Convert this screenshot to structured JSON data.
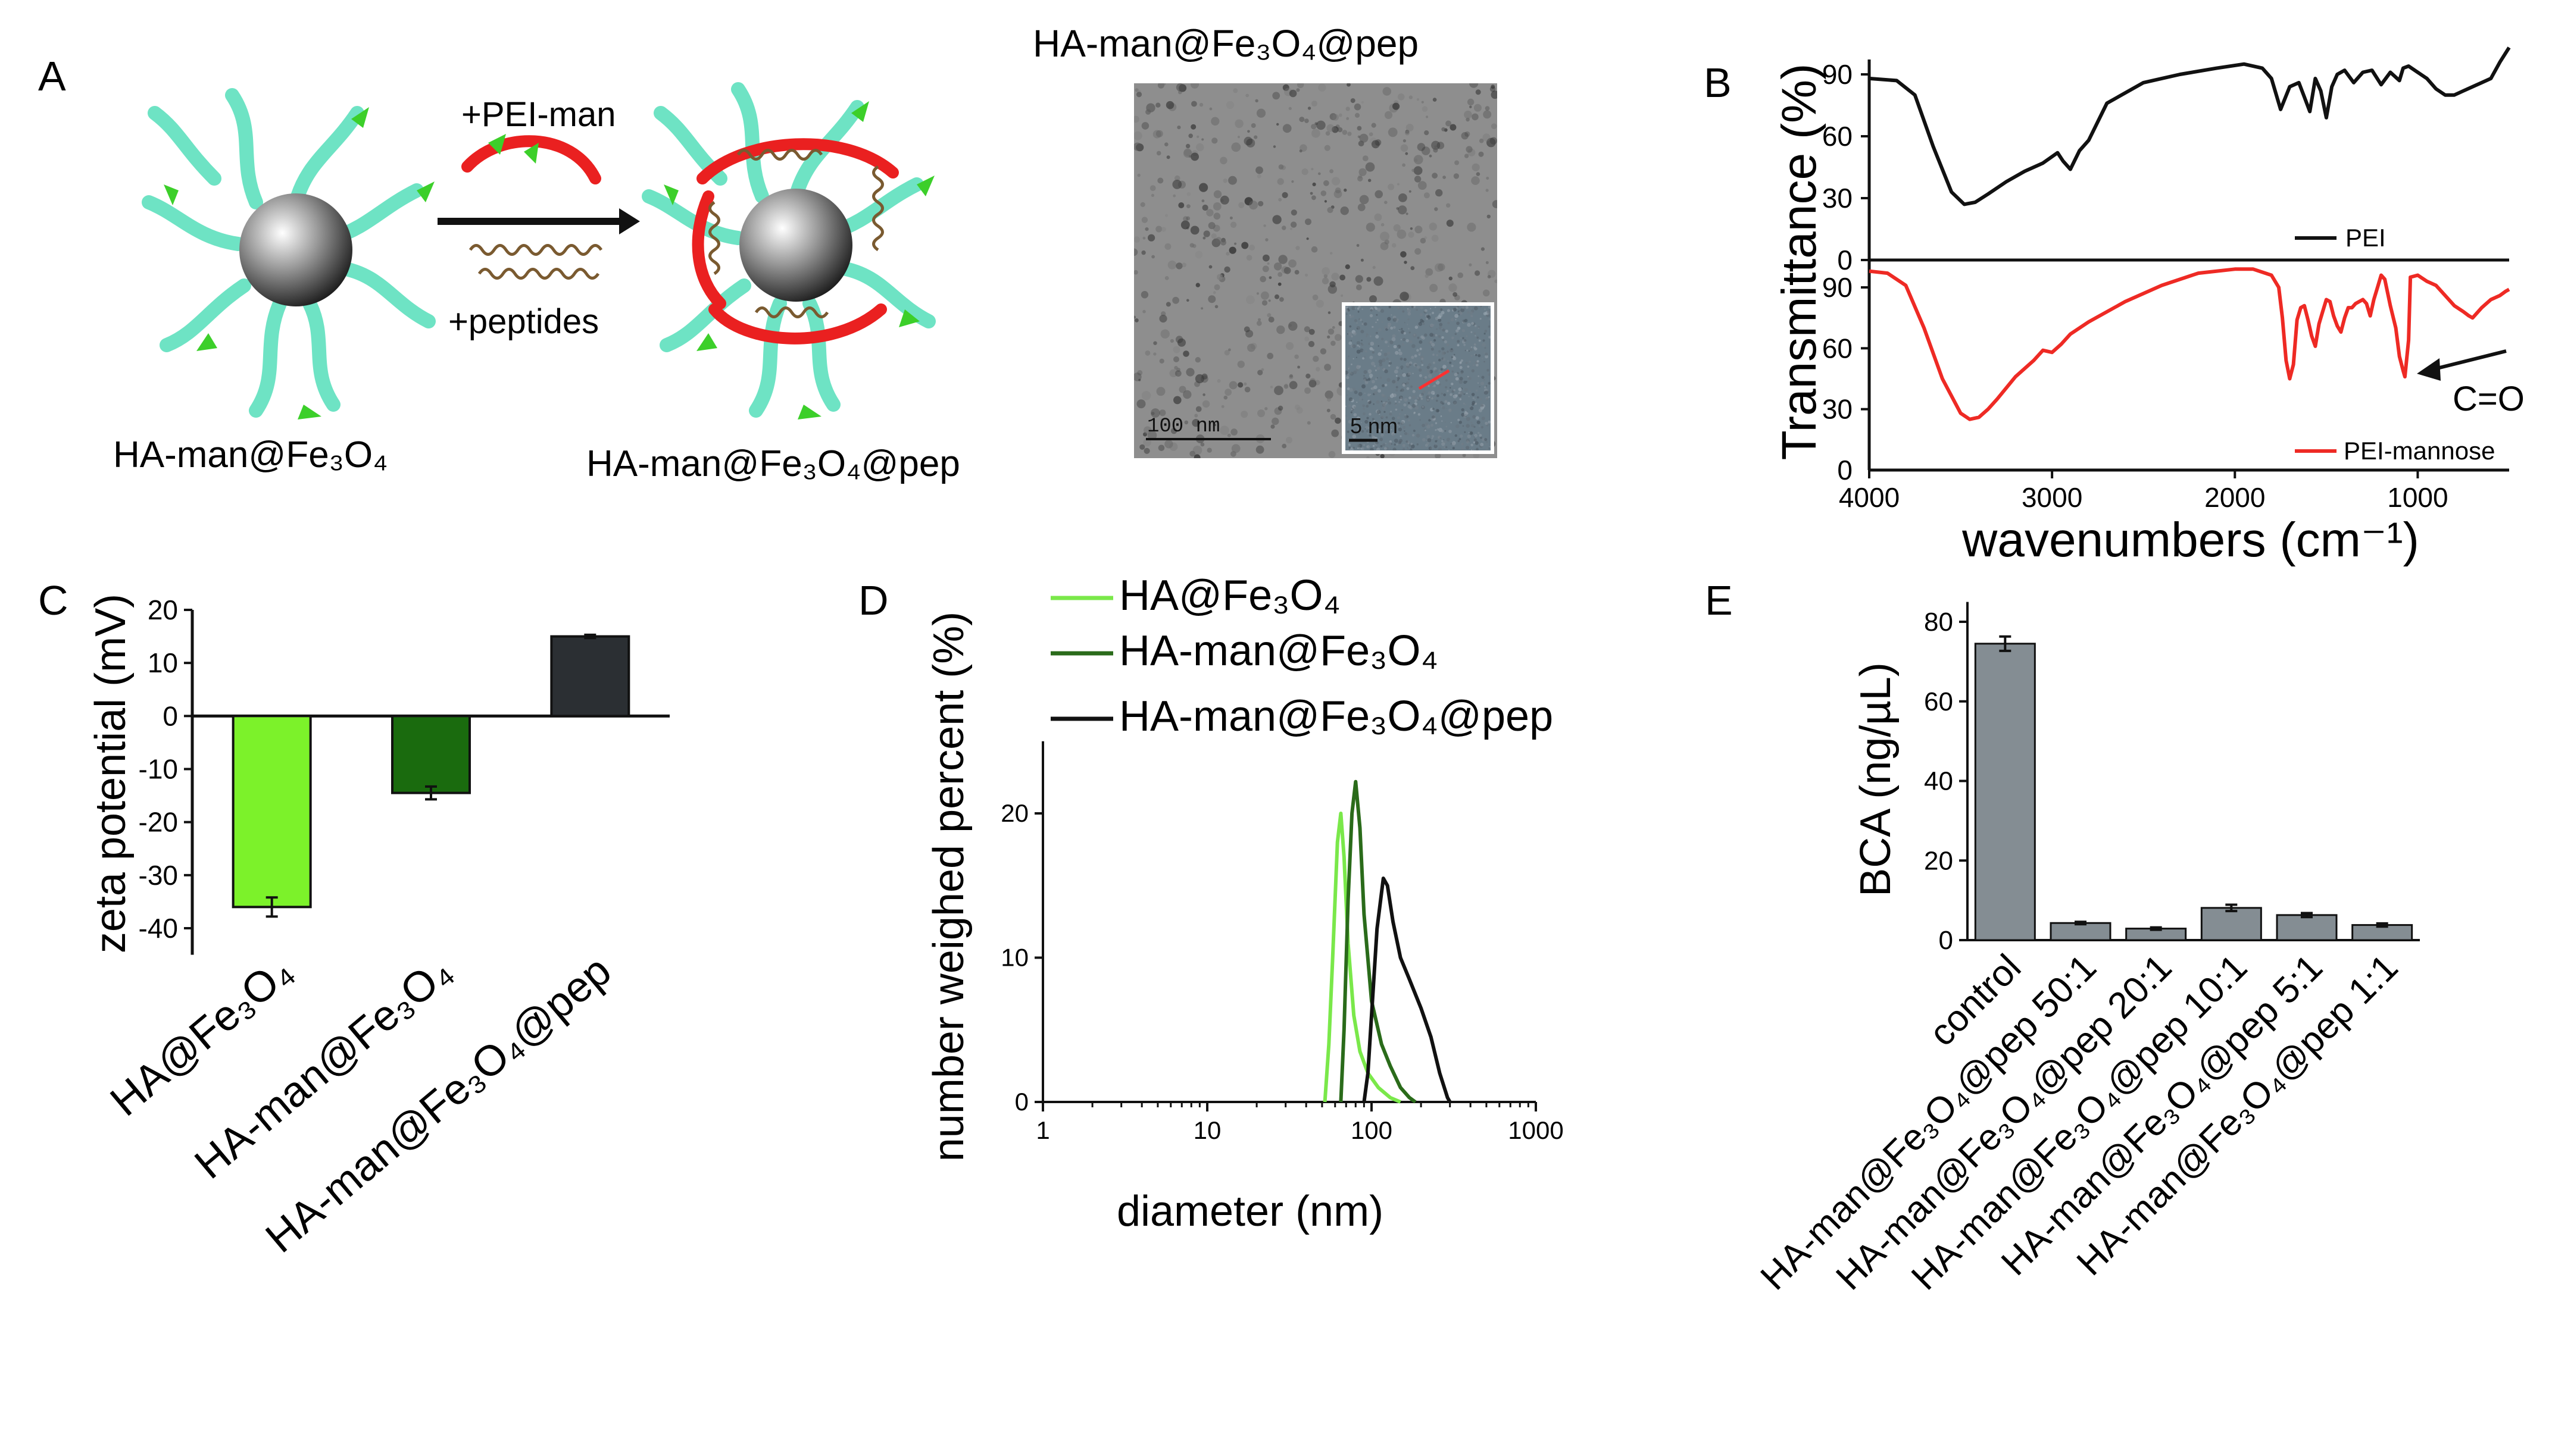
{
  "panel_labels": {
    "a": "A",
    "b": "B",
    "c": "C",
    "d": "D",
    "e": "E"
  },
  "panel_a": {
    "np_left_label": "HA-man@Fe₃O₄",
    "np_right_label": "HA-man@Fe₃O₄@pep",
    "arrow_top_label": "+PEI-man",
    "arrow_bottom_label": "+peptides",
    "tem_title": "HA-man@Fe₃O₄@pep",
    "tem_scale_label": "100 nm",
    "inset_scale_label": "5 nm"
  },
  "chart_data": [
    {
      "panel": "B",
      "type": "line",
      "xlabel": "wavenumbers (cm⁻¹)",
      "ylabel": "Transmittance (%)",
      "xlim": [
        4000,
        500
      ],
      "x_ticks": [
        4000,
        3000,
        2000,
        1000
      ],
      "top_y_ticks": [
        90,
        60,
        30,
        0
      ],
      "bottom_y_ticks": [
        90,
        60,
        30,
        0
      ],
      "annotation": "C=O",
      "colors": {
        "PEI": "#111111",
        "PEI-mannose": "#ee2a24"
      },
      "series": [
        {
          "name": "PEI",
          "x": [
            4000,
            3850,
            3750,
            3650,
            3550,
            3480,
            3420,
            3350,
            3250,
            3150,
            3050,
            2970,
            2940,
            2900,
            2850,
            2800,
            2700,
            2500,
            2300,
            2100,
            1950,
            1850,
            1800,
            1750,
            1700,
            1650,
            1620,
            1590,
            1560,
            1530,
            1500,
            1470,
            1440,
            1400,
            1350,
            1300,
            1250,
            1200,
            1150,
            1100,
            1080,
            1050,
            1000,
            950,
            900,
            850,
            800,
            750,
            700,
            650,
            600,
            550,
            500
          ],
          "y": [
            88,
            87,
            80,
            55,
            33,
            27,
            28,
            32,
            38,
            43,
            47,
            52,
            48,
            44,
            53,
            58,
            76,
            86,
            90,
            93,
            95,
            93,
            88,
            73,
            84,
            86,
            79,
            72,
            88,
            82,
            69,
            84,
            90,
            92,
            86,
            91,
            92,
            85,
            91,
            87,
            93,
            94,
            91,
            88,
            83,
            80,
            80,
            82,
            84,
            86,
            88,
            96,
            103
          ]
        },
        {
          "name": "PEI-mannose",
          "x": [
            4000,
            3900,
            3800,
            3700,
            3600,
            3500,
            3450,
            3400,
            3350,
            3300,
            3200,
            3100,
            3050,
            3000,
            2950,
            2900,
            2800,
            2600,
            2400,
            2200,
            2000,
            1900,
            1800,
            1760,
            1740,
            1720,
            1700,
            1680,
            1660,
            1640,
            1620,
            1600,
            1580,
            1560,
            1540,
            1520,
            1500,
            1480,
            1460,
            1440,
            1420,
            1400,
            1380,
            1360,
            1340,
            1320,
            1300,
            1280,
            1260,
            1240,
            1220,
            1200,
            1180,
            1150,
            1120,
            1100,
            1080,
            1070,
            1050,
            1040,
            1000,
            950,
            900,
            850,
            800,
            750,
            720,
            700,
            650,
            600,
            550,
            520,
            500
          ],
          "y": [
            98,
            97,
            91,
            70,
            45,
            28,
            25,
            26,
            30,
            35,
            46,
            54,
            59,
            58,
            62,
            67,
            73,
            83,
            91,
            97,
            99,
            99,
            96,
            90,
            75,
            54,
            45,
            52,
            74,
            80,
            81,
            74,
            66,
            61,
            72,
            78,
            84,
            83,
            76,
            71,
            68,
            75,
            80,
            80,
            82,
            83,
            84,
            82,
            76,
            84,
            90,
            96,
            94,
            81,
            70,
            56,
            49,
            46,
            64,
            95,
            96,
            93,
            91,
            86,
            81,
            78,
            76,
            75,
            80,
            84,
            86,
            88,
            89
          ]
        }
      ],
      "legend": [
        "PEI",
        "PEI-mannose"
      ]
    },
    {
      "panel": "C",
      "type": "bar",
      "ylabel": "zeta potential (mV)",
      "ylim": [
        -45,
        20
      ],
      "y_ticks": [
        20,
        10,
        0,
        -10,
        -20,
        -30,
        -40
      ],
      "categories": [
        "HA@Fe₃O₄",
        "HA-man@Fe₃O₄",
        "HA-man@Fe₃O₄@pep"
      ],
      "values": [
        -36,
        -14.5,
        15
      ],
      "errors": [
        1.8,
        1.2,
        0.3
      ],
      "colors": [
        "#7cf22a",
        "#1a6b0e",
        "#2b2f33"
      ]
    },
    {
      "panel": "D",
      "type": "line",
      "xlabel": "diameter (nm)",
      "ylabel": "number weighed percent (%)",
      "x_scale": "log",
      "xlim": [
        1,
        1000
      ],
      "ylim": [
        0,
        25
      ],
      "x_ticks": [
        1,
        10,
        100,
        1000
      ],
      "y_ticks": [
        0,
        10,
        20
      ],
      "series": [
        {
          "name": "HA@Fe₃O₄",
          "color": "#7ae84a",
          "x": [
            52,
            55,
            58,
            62,
            65,
            68,
            72,
            78,
            85,
            95,
            110,
            130,
            150
          ],
          "y": [
            0,
            4,
            10,
            18,
            20,
            17,
            11,
            6,
            3.5,
            2,
            1,
            0.3,
            0
          ]
        },
        {
          "name": "HA-man@Fe₃O₄",
          "color": "#2a6b1a",
          "x": [
            65,
            68,
            72,
            76,
            80,
            85,
            90,
            100,
            115,
            130,
            150,
            170,
            185
          ],
          "y": [
            0,
            5,
            14,
            20,
            22.2,
            19,
            13,
            7,
            4,
            2.5,
            1,
            0.3,
            0
          ]
        },
        {
          "name": "HA-man@Fe₃O₄@pep",
          "color": "#111111",
          "x": [
            90,
            95,
            100,
            108,
            118,
            125,
            135,
            150,
            170,
            200,
            230,
            260,
            290,
            300
          ],
          "y": [
            0,
            2,
            6,
            12,
            15.5,
            15,
            12.5,
            10,
            8.5,
            6.5,
            4.5,
            2,
            0.3,
            0
          ]
        }
      ],
      "legend": [
        "HA@Fe₃O₄",
        "HA-man@Fe₃O₄",
        "HA-man@Fe₃O₄@pep"
      ]
    },
    {
      "panel": "E",
      "type": "bar",
      "ylabel": "BCA (ng/µL)",
      "ylim": [
        0,
        85
      ],
      "y_ticks": [
        0,
        20,
        40,
        60,
        80
      ],
      "categories": [
        "control",
        "HA-man@Fe₃O₄@pep 50:1",
        "HA-man@Fe₃O₄@pep 20:1",
        "HA-man@Fe₃O₄@pep 10:1",
        "HA-man@Fe₃O₄@pep 5:1",
        "HA-man@Fe₃O₄@pep 1:1"
      ],
      "values": [
        74.5,
        4.3,
        2.9,
        8.1,
        6.3,
        3.8
      ],
      "errors": [
        1.8,
        0.3,
        0.3,
        0.8,
        0.5,
        0.4
      ],
      "colors": [
        "#848d93"
      ]
    }
  ]
}
